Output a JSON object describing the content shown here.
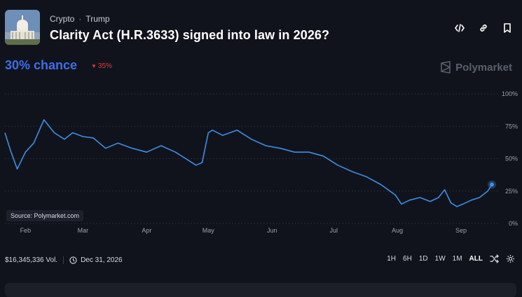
{
  "header": {
    "breadcrumbs": [
      "Crypto",
      "Trump"
    ],
    "separator": "·",
    "title": "Clarity Act (H.R.3633) signed into law in 2026?",
    "actions": [
      "embed-icon",
      "link-icon",
      "bookmark-icon"
    ]
  },
  "summary": {
    "chance_label": "30% chance",
    "delta_arrow": "▼",
    "delta_value": "35%",
    "delta_color": "#e23b3b",
    "accent_color": "#3f6de8"
  },
  "brand": {
    "name": "Polymarket"
  },
  "source_label": "Source: Polymarket.com",
  "footer": {
    "volume": "$16,345,336 Vol.",
    "end_date": "Dec 31, 2026",
    "ranges": [
      "1H",
      "6H",
      "1D",
      "1W",
      "1M",
      "ALL"
    ],
    "active_range": "ALL"
  },
  "chart_data": {
    "type": "line",
    "series": [
      {
        "color": "#3b8fe6",
        "x": [
          "2026-01-22",
          "2026-01-25",
          "2026-01-28",
          "2026-02-01",
          "2026-02-05",
          "2026-02-10",
          "2026-02-15",
          "2026-02-20",
          "2026-02-24",
          "2026-03-01",
          "2026-03-06",
          "2026-03-12",
          "2026-03-18",
          "2026-03-25",
          "2026-04-01",
          "2026-04-08",
          "2026-04-15",
          "2026-04-22",
          "2026-04-25",
          "2026-04-28",
          "2026-05-01",
          "2026-05-03",
          "2026-05-08",
          "2026-05-15",
          "2026-05-22",
          "2026-05-29",
          "2026-06-05",
          "2026-06-12",
          "2026-06-19",
          "2026-06-26",
          "2026-07-03",
          "2026-07-10",
          "2026-07-17",
          "2026-07-24",
          "2026-07-31",
          "2026-08-03",
          "2026-08-07",
          "2026-08-12",
          "2026-08-17",
          "2026-08-21",
          "2026-08-24",
          "2026-08-27",
          "2026-08-30",
          "2026-09-02",
          "2026-09-06",
          "2026-09-10",
          "2026-09-14",
          "2026-09-16"
        ],
        "values": [
          70,
          55,
          42,
          55,
          62,
          80,
          70,
          65,
          70,
          67,
          66,
          58,
          62,
          58,
          55,
          60,
          55,
          48,
          45,
          47,
          70,
          72,
          68,
          72,
          65,
          60,
          58,
          55,
          55,
          52,
          45,
          40,
          36,
          30,
          22,
          15,
          18,
          20,
          17,
          20,
          26,
          16,
          13,
          15,
          18,
          20,
          25,
          30
        ]
      }
    ],
    "x_ticks": [
      "Feb",
      "Mar",
      "Apr",
      "May",
      "Jun",
      "Jul",
      "Aug",
      "Sep"
    ],
    "x_tick_dates": [
      "2026-02-01",
      "2026-03-01",
      "2026-04-01",
      "2026-05-01",
      "2026-06-01",
      "2026-07-01",
      "2026-08-01",
      "2026-09-01"
    ],
    "y_ticks": [
      "0%",
      "25%",
      "50%",
      "75%",
      "100%"
    ],
    "y_tick_values": [
      0,
      25,
      50,
      75,
      100
    ],
    "ylim": [
      0,
      100
    ],
    "grid": true,
    "current_value": 30
  }
}
